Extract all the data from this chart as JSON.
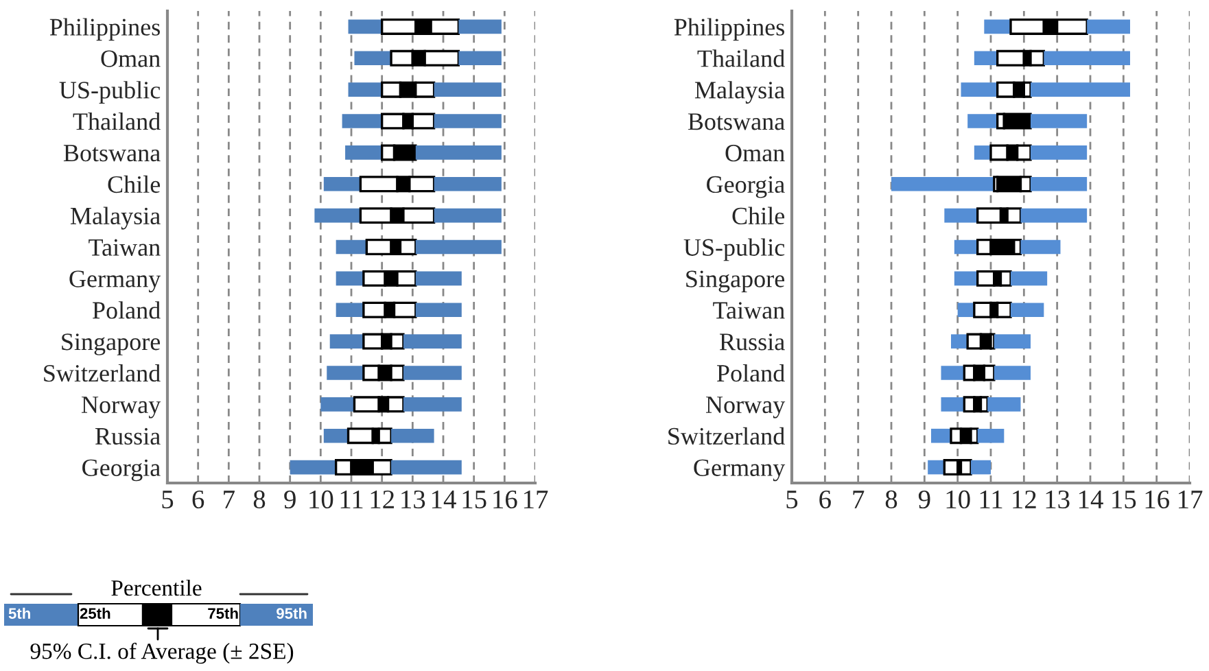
{
  "chart_data": [
    {
      "type": "bar",
      "orientation": "horizontal",
      "grid": "x",
      "legend": false,
      "categories": [
        "Philippines",
        "Oman",
        "US-public",
        "Thailand",
        "Botswana",
        "Chile",
        "Malaysia",
        "Taiwan",
        "Germany",
        "Poland",
        "Singapore",
        "Switzerland",
        "Norway",
        "Russia",
        "Georgia"
      ],
      "series": [
        {
          "color": "#4f81bd",
          "base": [
            10.9,
            11.1,
            10.9,
            10.7,
            10.8,
            10.1,
            9.8,
            10.5,
            10.5,
            10.5,
            10.3,
            10.2,
            10.0,
            10.1,
            9.0
          ],
          "values": [
            1.1,
            1.2,
            1.1,
            1.3,
            1.2,
            1.2,
            1.5,
            1.0,
            0.9,
            0.9,
            1.1,
            1.2,
            1.1,
            0.8,
            1.5
          ]
        },
        {
          "color": "#ffffff",
          "base": [
            12.0,
            12.3,
            12.0,
            12.0,
            12.0,
            11.3,
            11.3,
            11.5,
            11.4,
            11.4,
            11.4,
            11.4,
            11.1,
            10.9,
            10.5
          ],
          "values": [
            1.1,
            0.7,
            0.6,
            0.7,
            0.4,
            1.2,
            1.0,
            0.8,
            0.7,
            0.7,
            0.6,
            0.5,
            0.8,
            0.8,
            0.5
          ]
        },
        {
          "color": "#000000",
          "base": [
            13.1,
            13.0,
            12.6,
            12.7,
            12.4,
            12.5,
            12.3,
            12.3,
            12.1,
            12.1,
            12.0,
            11.9,
            11.9,
            11.7,
            11.0
          ],
          "values": [
            0.5,
            0.4,
            0.5,
            0.3,
            0.7,
            0.4,
            0.4,
            0.3,
            0.4,
            0.3,
            0.3,
            0.4,
            0.3,
            0.2,
            0.7
          ]
        },
        {
          "color": "#ffffff",
          "base": [
            13.6,
            13.4,
            13.1,
            13.0,
            null,
            12.9,
            12.7,
            12.6,
            12.5,
            12.4,
            12.3,
            12.3,
            12.2,
            11.9,
            11.7
          ],
          "values": [
            0.9,
            1.1,
            0.6,
            0.7,
            null,
            0.8,
            1.0,
            0.5,
            0.6,
            0.7,
            0.4,
            0.4,
            0.5,
            0.4,
            0.6
          ]
        },
        {
          "color": "#4f81bd",
          "base": [
            14.5,
            14.5,
            13.7,
            13.7,
            13.1,
            13.7,
            13.7,
            13.1,
            13.1,
            13.1,
            12.7,
            12.7,
            12.7,
            12.3,
            12.3
          ],
          "values": [
            1.4,
            1.4,
            2.2,
            2.2,
            2.8,
            2.2,
            2.2,
            2.8,
            1.5,
            1.5,
            1.9,
            1.9,
            1.9,
            1.4,
            2.3
          ]
        }
      ],
      "xlim": [
        5,
        17
      ],
      "xticks": [
        5,
        6,
        7,
        8,
        9,
        10,
        11,
        12,
        13,
        14,
        15,
        16,
        17
      ],
      "annotations": [
        "Percentile",
        "5th",
        "25th",
        "75th",
        "95th",
        "95% C.I. of Average (± 2SE)"
      ]
    },
    {
      "type": "bar",
      "orientation": "horizontal",
      "grid": "x",
      "legend": false,
      "categories": [
        "Philippines",
        "Thailand",
        "Malaysia",
        "Botswana",
        "Oman",
        "Georgia",
        "Chile",
        "US-public",
        "Singapore",
        "Taiwan",
        "Russia",
        "Poland",
        "Norway",
        "Switzerland",
        "Germany"
      ],
      "series": [
        {
          "color": "#558ed5",
          "base": [
            10.8,
            10.5,
            10.1,
            10.3,
            10.5,
            8.0,
            9.6,
            9.9,
            9.9,
            10.0,
            9.8,
            9.5,
            9.5,
            9.2,
            9.1
          ],
          "values": [
            0.8,
            0.7,
            1.1,
            0.9,
            0.5,
            3.1,
            1.0,
            0.7,
            0.7,
            0.5,
            0.5,
            0.7,
            0.7,
            0.6,
            0.5
          ]
        },
        {
          "color": "#ffffff",
          "base": [
            11.6,
            11.2,
            11.2,
            11.2,
            11.0,
            11.1,
            10.6,
            10.6,
            10.6,
            10.5,
            10.3,
            10.2,
            10.2,
            9.8,
            9.6
          ],
          "values": [
            1.0,
            0.8,
            0.5,
            0.2,
            0.5,
            0.1,
            0.7,
            0.4,
            0.5,
            0.5,
            0.4,
            0.3,
            0.3,
            0.3,
            0.4
          ]
        },
        {
          "color": "#000000",
          "base": [
            12.6,
            12.0,
            11.7,
            11.4,
            11.5,
            11.2,
            11.3,
            11.0,
            11.1,
            11.0,
            10.7,
            10.5,
            10.5,
            10.1,
            10.0
          ],
          "values": [
            0.4,
            0.2,
            0.3,
            0.8,
            0.3,
            0.7,
            0.2,
            0.7,
            0.2,
            0.2,
            0.3,
            0.3,
            0.2,
            0.3,
            0.1
          ]
        },
        {
          "color": "#ffffff",
          "base": [
            13.0,
            12.2,
            12.0,
            null,
            11.8,
            11.9,
            11.5,
            11.7,
            11.3,
            11.2,
            11.0,
            10.8,
            10.7,
            10.4,
            10.1
          ],
          "values": [
            0.9,
            0.4,
            0.2,
            null,
            0.4,
            0.3,
            0.4,
            0.2,
            0.3,
            0.4,
            0.1,
            0.3,
            0.2,
            0.2,
            0.3
          ]
        },
        {
          "color": "#558ed5",
          "base": [
            13.9,
            12.6,
            12.2,
            12.2,
            12.2,
            12.2,
            11.9,
            11.9,
            11.6,
            11.6,
            11.1,
            11.1,
            10.9,
            10.6,
            10.4
          ],
          "values": [
            1.3,
            2.6,
            3.0,
            1.7,
            1.7,
            1.7,
            2.0,
            1.2,
            1.1,
            1.0,
            1.1,
            1.1,
            1.0,
            0.8,
            0.6
          ]
        }
      ],
      "xlim": [
        5,
        17
      ],
      "xticks": [
        5,
        6,
        7,
        8,
        9,
        10,
        11,
        12,
        13,
        14,
        15,
        16,
        17
      ]
    }
  ]
}
